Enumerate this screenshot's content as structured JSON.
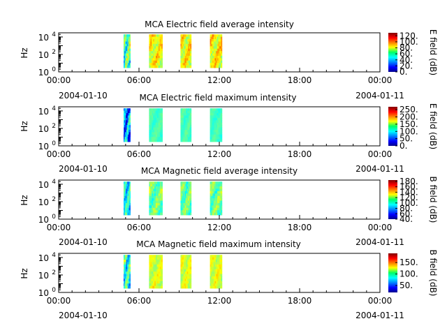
{
  "chart_data": [
    {
      "type": "heatmap",
      "title": "MCA  Electric field average intensity",
      "ylabel": "Hz",
      "ylim": [
        1,
        30000
      ],
      "y_scale": "log",
      "y_ticks": [
        {
          "base": "10",
          "exp": "0"
        },
        {
          "base": "10",
          "exp": "2"
        },
        {
          "base": "10",
          "exp": "4"
        }
      ],
      "x_ticks": [
        "00:00",
        "06:00",
        "12:00",
        "18:00",
        "00:00"
      ],
      "x_dates": [
        "2004-01-10",
        "2004-01-11"
      ],
      "xlim_hours": [
        0,
        24
      ],
      "colorbar": {
        "label": "E field (dB)",
        "range": [
          0,
          130
        ],
        "ticks": [
          "0.",
          "20.",
          "40.",
          "60.",
          "80.",
          "100.",
          "120."
        ]
      },
      "blocks": [
        {
          "start_hour": 4.85,
          "end_hour": 5.35,
          "f_min_hz": 3,
          "f_max_hz": 20000,
          "mean_db": 60,
          "range_db": [
            10,
            110
          ]
        },
        {
          "start_hour": 6.75,
          "end_hour": 7.75,
          "f_min_hz": 3,
          "f_max_hz": 20000,
          "mean_db": 80,
          "range_db": [
            60,
            115
          ]
        },
        {
          "start_hour": 9.1,
          "end_hour": 9.9,
          "f_min_hz": 3,
          "f_max_hz": 20000,
          "mean_db": 80,
          "range_db": [
            60,
            115
          ]
        },
        {
          "start_hour": 11.3,
          "end_hour": 12.2,
          "f_min_hz": 3,
          "f_max_hz": 20000,
          "mean_db": 82,
          "range_db": [
            60,
            120
          ]
        }
      ]
    },
    {
      "type": "heatmap",
      "title": "MCA  Electric field maximum intensity",
      "ylabel": "Hz",
      "ylim": [
        1,
        30000
      ],
      "y_scale": "log",
      "y_ticks": [
        {
          "base": "10",
          "exp": "0"
        },
        {
          "base": "10",
          "exp": "2"
        },
        {
          "base": "10",
          "exp": "4"
        }
      ],
      "x_ticks": [
        "00:00",
        "06:00",
        "12:00",
        "18:00",
        "00:00"
      ],
      "x_dates": [
        "2004-01-10",
        "2004-01-11"
      ],
      "xlim_hours": [
        0,
        24
      ],
      "colorbar": {
        "label": "E field (dB)",
        "range": [
          0,
          270
        ],
        "ticks": [
          "0.",
          "50.",
          "100.",
          "150.",
          "200.",
          "250."
        ]
      },
      "blocks": [
        {
          "start_hour": 4.85,
          "end_hour": 5.35,
          "f_min_hz": 3,
          "f_max_hz": 20000,
          "mean_db": 70,
          "range_db": [
            20,
            260
          ]
        },
        {
          "start_hour": 6.75,
          "end_hour": 7.75,
          "f_min_hz": 3,
          "f_max_hz": 20000,
          "mean_db": 120,
          "range_db": [
            100,
            140
          ]
        },
        {
          "start_hour": 9.1,
          "end_hour": 9.9,
          "f_min_hz": 3,
          "f_max_hz": 20000,
          "mean_db": 120,
          "range_db": [
            100,
            140
          ]
        },
        {
          "start_hour": 11.3,
          "end_hour": 12.2,
          "f_min_hz": 3,
          "f_max_hz": 20000,
          "mean_db": 118,
          "range_db": [
            100,
            140
          ]
        }
      ]
    },
    {
      "type": "heatmap",
      "title": "MCA  Magnetic field average intensity",
      "ylabel": "Hz",
      "ylim": [
        1,
        30000
      ],
      "y_scale": "log",
      "y_ticks": [
        {
          "base": "10",
          "exp": "0"
        },
        {
          "base": "10",
          "exp": "2"
        },
        {
          "base": "10",
          "exp": "4"
        }
      ],
      "x_ticks": [
        "00:00",
        "06:00",
        "12:00",
        "18:00",
        "00:00"
      ],
      "x_dates": [
        "2004-01-10",
        "2004-01-11"
      ],
      "xlim_hours": [
        0,
        24
      ],
      "colorbar": {
        "label": "B field (dB)",
        "range": [
          40,
          185
        ],
        "ticks": [
          "40.",
          "60.",
          "80.",
          "100.",
          "120.",
          "140.",
          "160.",
          "180."
        ]
      },
      "blocks": [
        {
          "start_hour": 4.85,
          "end_hour": 5.35,
          "f_min_hz": 3,
          "f_max_hz": 20000,
          "mean_db": 95,
          "range_db": [
            50,
            130
          ]
        },
        {
          "start_hour": 6.75,
          "end_hour": 7.75,
          "f_min_hz": 3,
          "f_max_hz": 20000,
          "mean_db": 110,
          "range_db": [
            70,
            130
          ]
        },
        {
          "start_hour": 9.1,
          "end_hour": 9.9,
          "f_min_hz": 3,
          "f_max_hz": 20000,
          "mean_db": 110,
          "range_db": [
            70,
            130
          ]
        },
        {
          "start_hour": 11.3,
          "end_hour": 12.2,
          "f_min_hz": 3,
          "f_max_hz": 20000,
          "mean_db": 110,
          "range_db": [
            70,
            130
          ]
        }
      ]
    },
    {
      "type": "heatmap",
      "title": "MCA  Magnetic field maximum intensity",
      "ylabel": "Hz",
      "ylim": [
        1,
        30000
      ],
      "y_scale": "log",
      "y_ticks": [
        {
          "base": "10",
          "exp": "0"
        },
        {
          "base": "10",
          "exp": "2"
        },
        {
          "base": "10",
          "exp": "4"
        }
      ],
      "x_ticks": [
        "00:00",
        "06:00",
        "12:00",
        "18:00",
        "00:00"
      ],
      "x_dates": [
        "2004-01-10",
        "2004-01-11"
      ],
      "xlim_hours": [
        0,
        24
      ],
      "colorbar": {
        "label": "B field (dB)",
        "range": [
          20,
          190
        ],
        "ticks": [
          "50.",
          "100.",
          "150."
        ]
      },
      "blocks": [
        {
          "start_hour": 4.85,
          "end_hour": 5.35,
          "f_min_hz": 3,
          "f_max_hz": 20000,
          "mean_db": 90,
          "range_db": [
            30,
            160
          ]
        },
        {
          "start_hour": 6.75,
          "end_hour": 7.75,
          "f_min_hz": 3,
          "f_max_hz": 20000,
          "mean_db": 120,
          "range_db": [
            100,
            150
          ]
        },
        {
          "start_hour": 9.1,
          "end_hour": 9.9,
          "f_min_hz": 3,
          "f_max_hz": 20000,
          "mean_db": 120,
          "range_db": [
            100,
            150
          ]
        },
        {
          "start_hour": 11.3,
          "end_hour": 12.2,
          "f_min_hz": 3,
          "f_max_hz": 20000,
          "mean_db": 120,
          "range_db": [
            100,
            150
          ]
        }
      ]
    }
  ]
}
